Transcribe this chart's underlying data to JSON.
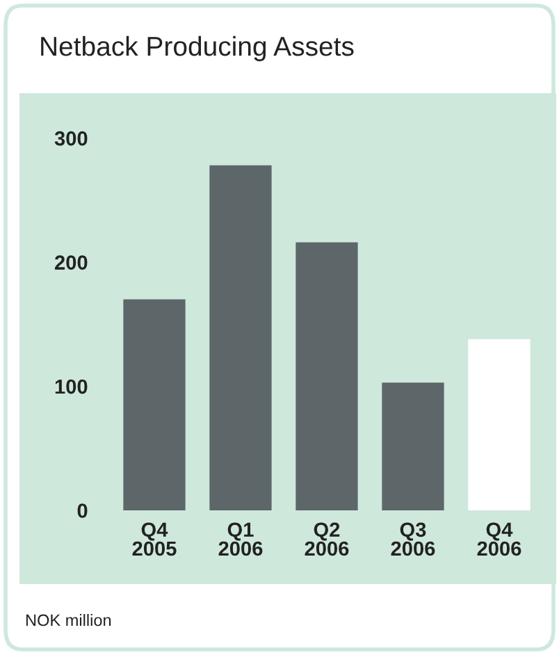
{
  "chart_data": {
    "type": "bar",
    "title": "Netback Producing Assets",
    "categories": [
      "Q4\n2005",
      "Q1\n2006",
      "Q2\n2006",
      "Q3\n2006",
      "Q4\n2006"
    ],
    "values": [
      170,
      278,
      216,
      103,
      138
    ],
    "colors": [
      "#5d6769",
      "#5d6769",
      "#5d6769",
      "#5d6769",
      "#ffffff"
    ],
    "ylim": [
      0,
      300
    ],
    "yticks": [
      0,
      100,
      200,
      300
    ],
    "grid": false,
    "annotations": [
      "NOK million"
    ]
  }
}
